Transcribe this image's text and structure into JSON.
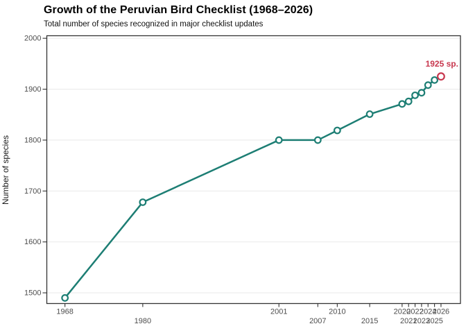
{
  "header": {
    "title": "Growth of the Peruvian Bird Checklist (1968–2026)",
    "subtitle": "Total number of species recognized in major checklist updates"
  },
  "chart_data": {
    "type": "line",
    "title": "Growth of the Peruvian Bird Checklist (1968–2026)",
    "subtitle": "Total number of species recognized in major checklist updates",
    "x": [
      1968,
      1980,
      2001,
      2007,
      2010,
      2015,
      2020,
      2021,
      2022,
      2023,
      2024,
      2025,
      2026
    ],
    "y": [
      1490,
      1678,
      1800,
      1800,
      1819,
      1851,
      1871,
      1876,
      1888,
      1893,
      1908,
      1918,
      1925
    ],
    "xlabel": "",
    "ylabel": "Number of species",
    "xlim": [
      1965.2,
      2029.0
    ],
    "ylim": [
      1479,
      2005
    ],
    "yticks": [
      1500,
      1600,
      1700,
      1800,
      1900,
      2000
    ],
    "xticks": [
      1968,
      1980,
      2001,
      2007,
      2010,
      2015,
      2020,
      2021,
      2022,
      2023,
      2024,
      2025,
      2026
    ],
    "grid": "horizontal-major-only",
    "legend": "none",
    "highlight_index": 12,
    "annotation": {
      "text": "1925 sp.",
      "x": 2026,
      "y": 1925
    },
    "colors": {
      "line": "#1d7e74",
      "point_fill": "#ffffff",
      "highlight": "#c8374e",
      "grid": "#ebebeb",
      "axis_text": "#4d4d4d",
      "panel_border": "#333333"
    }
  }
}
